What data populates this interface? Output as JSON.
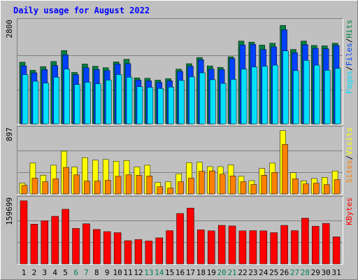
{
  "colors": {
    "background": "#c0c0c0",
    "panel": "#c0c0c0",
    "title": "#0000ff",
    "hits": "#008040",
    "files": "#0040ff",
    "pages": "#00e0ff",
    "visits": "#ffff00",
    "sites": "#ff8000",
    "kbytes": "#ff0000",
    "weekend_label": "#00805c",
    "weekday_label": "#000000"
  },
  "chart_data": [
    {
      "type": "bar",
      "title": "Daily usage for August 2022",
      "ylabel_parts": [
        "Pages",
        "/",
        "Files",
        "/",
        "Hits"
      ],
      "ymax_label": "2800",
      "ylim": [
        0,
        2800
      ],
      "categories": [
        "1",
        "2",
        "3",
        "4",
        "5",
        "6",
        "7",
        "8",
        "9",
        "10",
        "11",
        "12",
        "13",
        "14",
        "15",
        "16",
        "17",
        "18",
        "19",
        "20",
        "21",
        "22",
        "23",
        "24",
        "25",
        "26",
        "27",
        "28",
        "29",
        "30",
        "31"
      ],
      "weekend_days": [
        6,
        7,
        13,
        14,
        20,
        21,
        27,
        28
      ],
      "series": [
        {
          "name": "Hits",
          "values": [
            1690,
            1470,
            1570,
            1710,
            2010,
            1410,
            1640,
            1580,
            1540,
            1700,
            1770,
            1260,
            1250,
            1200,
            1240,
            1500,
            1650,
            1820,
            1590,
            1550,
            1840,
            2270,
            2240,
            2160,
            2210,
            2700,
            2040,
            2270,
            2150,
            2140,
            2210
          ]
        },
        {
          "name": "Files",
          "values": [
            1590,
            1400,
            1490,
            1600,
            1890,
            1350,
            1540,
            1490,
            1460,
            1640,
            1650,
            1200,
            1180,
            1140,
            1180,
            1440,
            1580,
            1760,
            1500,
            1490,
            1790,
            2160,
            2180,
            2040,
            2110,
            2580,
            1950,
            2170,
            2070,
            2060,
            2150
          ]
        },
        {
          "name": "Pages",
          "values": [
            1350,
            1170,
            1120,
            1280,
            1500,
            1080,
            1140,
            1100,
            1200,
            1350,
            1280,
            1020,
            1000,
            970,
            1010,
            1190,
            1290,
            1400,
            1210,
            1110,
            1220,
            1500,
            1560,
            1580,
            1610,
            2000,
            1460,
            1740,
            1610,
            1470,
            1520
          ]
        }
      ]
    },
    {
      "type": "bar",
      "ylabel_parts": [
        "Sites",
        "/",
        "Visits"
      ],
      "ymax_label": "897",
      "ylim": [
        0,
        897
      ],
      "series": [
        {
          "name": "Visits",
          "values": [
            150,
            430,
            260,
            400,
            595,
            375,
            505,
            470,
            480,
            455,
            465,
            375,
            400,
            160,
            170,
            280,
            435,
            440,
            380,
            380,
            405,
            245,
            185,
            355,
            430,
            880,
            295,
            180,
            215,
            230,
            320
          ]
        },
        {
          "name": "Sites",
          "values": [
            120,
            220,
            170,
            210,
            370,
            265,
            180,
            180,
            190,
            245,
            265,
            260,
            250,
            100,
            80,
            170,
            220,
            315,
            320,
            275,
            250,
            170,
            130,
            260,
            300,
            690,
            210,
            140,
            150,
            130,
            200
          ]
        }
      ]
    },
    {
      "type": "bar",
      "ylabel_parts": [
        "KBytes"
      ],
      "ymax_label": "159699",
      "ylim": [
        0,
        159699
      ],
      "series": [
        {
          "name": "KBytes",
          "values": [
            156500,
            98500,
            107000,
            118000,
            135500,
            88000,
            99500,
            85500,
            80000,
            77500,
            57500,
            60500,
            57000,
            64500,
            82500,
            125000,
            138500,
            84500,
            82000,
            95500,
            94000,
            82000,
            82500,
            82000,
            77500,
            95500,
            82500,
            113500,
            93500,
            100500,
            67000
          ]
        }
      ]
    }
  ]
}
